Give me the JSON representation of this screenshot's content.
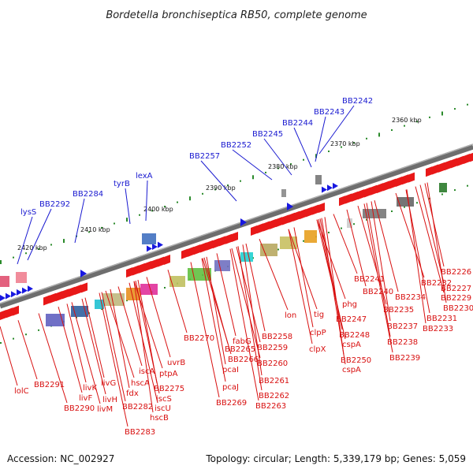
{
  "title": "Bordetella bronchiseptica RB50, complete genome",
  "accession": "Accession: NC_002927",
  "summary": "Topology: circular; Length: 5,339,179 bp; Genes: 5,059",
  "colors": {
    "forward_label": "#1a1ad0",
    "reverse_label": "#d81010",
    "backbone": "#6e6e6e",
    "tick": "#2a8a2a"
  },
  "ticks": [
    "2360 kbp",
    "2370 kbp",
    "2380 kbp",
    "2390 kbp",
    "2400 kbp",
    "2410 kbp",
    "2420 kbp"
  ],
  "forward_labels": [
    "BB2242",
    "BB2243",
    "BB2244",
    "BB2245",
    "BB2252",
    "BB2257",
    "lexA",
    "tyrB",
    "BB2284",
    "BB2292",
    "lysS"
  ],
  "reverse_labels": [
    "BB2226",
    "BB2227",
    "BB2229",
    "BB2230",
    "BB2231",
    "BB2232",
    "BB2233",
    "BB2234",
    "BB2235",
    "BB2237",
    "BB2238",
    "BB2239",
    "BB2240",
    "BB2241",
    "phg",
    "BB2247",
    "BB2248",
    "cspA",
    "BB2250",
    "cspA",
    "tig",
    "clpP",
    "clpX",
    "lon",
    "BB2258",
    "BB2259",
    "BB2260",
    "BB2261",
    "BB2262",
    "BB2263",
    "fabG",
    "BB2265",
    "BB2266",
    "pcaI",
    "pcaJ",
    "BB2269",
    "BB2270",
    "uvrB",
    "ptpA",
    "BB2275",
    "iscS",
    "iscU",
    "hscB",
    "iscA",
    "hscA",
    "fdx",
    "BB2282",
    "BB2283",
    "livG",
    "livH",
    "livM",
    "livK",
    "livF",
    "BB2290",
    "BB2291",
    "lolC"
  ]
}
